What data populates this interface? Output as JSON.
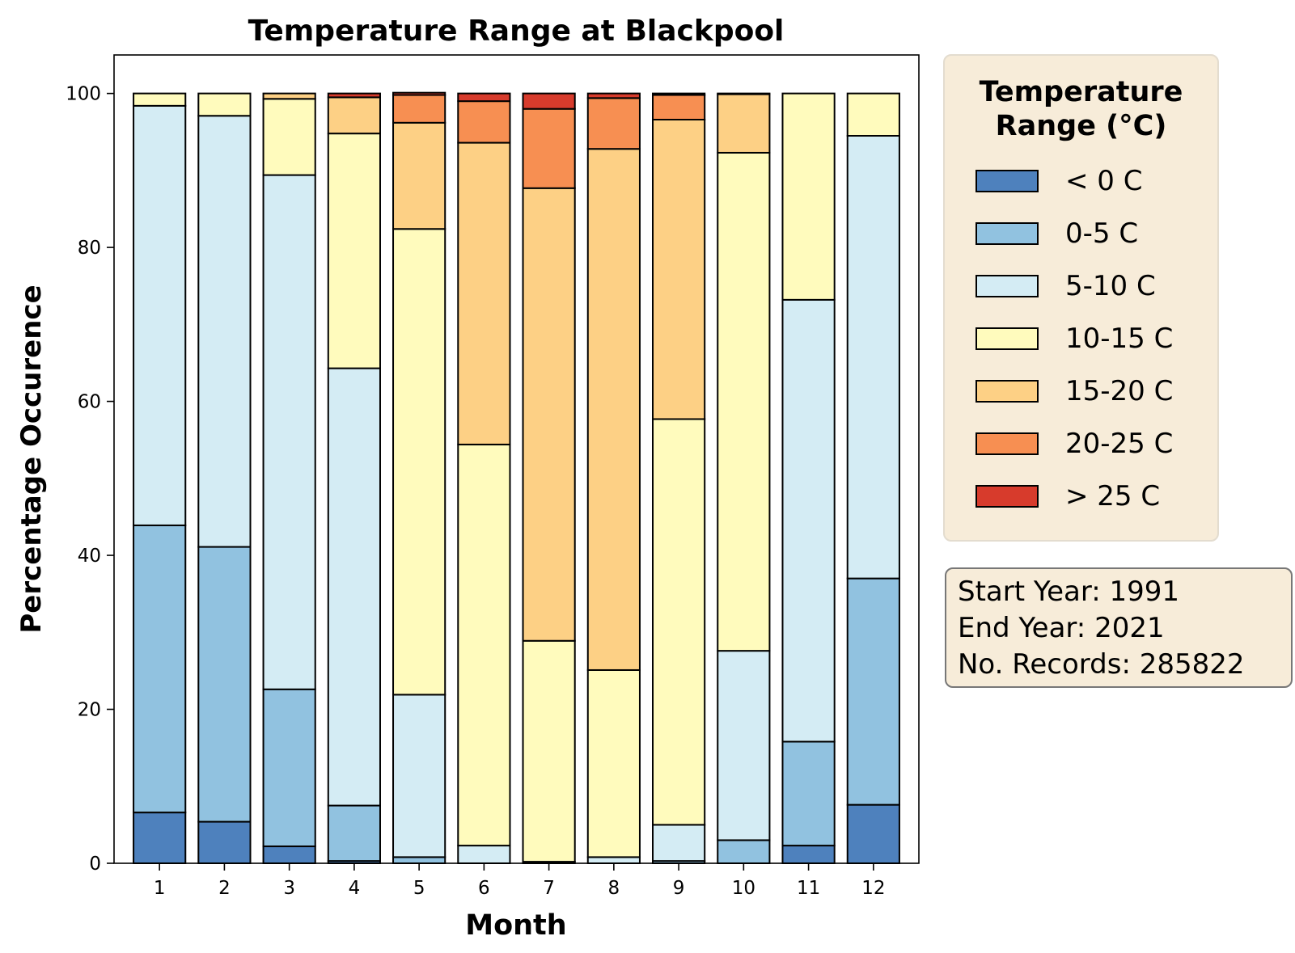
{
  "chart_data": {
    "type": "bar",
    "stacked": true,
    "title": "Temperature Range at Blackpool",
    "xlabel": "Month",
    "ylabel": "Percentage Occurence",
    "ylim": [
      0,
      105
    ],
    "yticks": [
      0,
      20,
      40,
      60,
      80,
      100
    ],
    "grid": false,
    "legend_title": "Temperature Range (°C)",
    "legend_title_lines": [
      "Temperature",
      "Range (°C)"
    ],
    "legend_position": "right",
    "categories": [
      "1",
      "2",
      "3",
      "4",
      "5",
      "6",
      "7",
      "8",
      "9",
      "10",
      "11",
      "12"
    ],
    "series": [
      {
        "name": "< 0 C",
        "color": "#4e81bd",
        "values": [
          6.6,
          5.4,
          2.2,
          0.3,
          0.0,
          0.0,
          0.0,
          0.0,
          0.0,
          0.0,
          2.3,
          7.6
        ]
      },
      {
        "name": "0-5 C",
        "color": "#91c2e0",
        "values": [
          37.3,
          35.7,
          20.4,
          7.2,
          0.8,
          0.0,
          0.0,
          0.0,
          0.3,
          3.0,
          13.5,
          29.4
        ]
      },
      {
        "name": "5-10 C",
        "color": "#d4ecf4",
        "values": [
          54.5,
          56.0,
          66.8,
          56.8,
          21.1,
          2.3,
          0.2,
          0.8,
          4.7,
          24.6,
          57.4,
          57.5
        ]
      },
      {
        "name": "10-15 C",
        "color": "#fffbbd",
        "values": [
          1.6,
          2.9,
          9.9,
          30.5,
          60.5,
          52.1,
          28.7,
          24.3,
          52.7,
          64.7,
          26.8,
          5.5
        ]
      },
      {
        "name": "15-20 C",
        "color": "#fdd085",
        "values": [
          0.0,
          0.0,
          0.7,
          4.7,
          13.8,
          39.2,
          58.8,
          67.7,
          38.9,
          7.6,
          0.0,
          0.0
        ]
      },
      {
        "name": "20-25 C",
        "color": "#f78f52",
        "values": [
          0.0,
          0.0,
          0.0,
          0.0,
          3.6,
          5.4,
          10.3,
          6.6,
          3.2,
          0.0,
          0.0,
          0.0
        ]
      },
      {
        "name": "> 25 C",
        "color": "#d73b2c",
        "values": [
          0.0,
          0.0,
          0.0,
          0.5,
          0.3,
          1.0,
          2.0,
          0.6,
          0.2,
          0.1,
          0.0,
          0.0
        ]
      }
    ]
  },
  "info": {
    "start": "Start Year: 1991",
    "end": "End Year: 2021",
    "records": "No. Records: 285822"
  }
}
